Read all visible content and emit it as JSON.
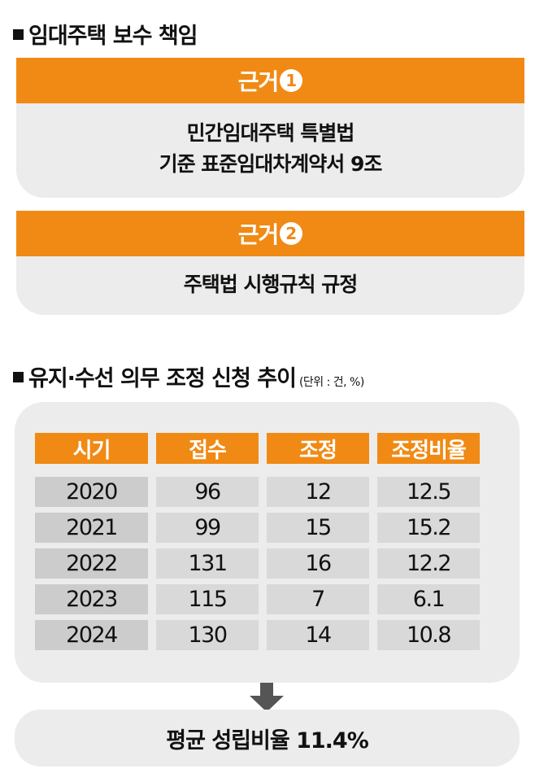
{
  "section1": {
    "title": "임대주택 보수 책임"
  },
  "basis": [
    {
      "label": "근거",
      "number": "1",
      "lines": [
        "민간임대주택 특별법",
        "기준 표준임대차계약서 9조"
      ]
    },
    {
      "label": "근거",
      "number": "2",
      "lines": [
        "주택법 시행규칙 규정"
      ]
    }
  ],
  "section2": {
    "title": "유지·수선 의무 조정 신청 추이",
    "unit": "(단위 : 건, %)"
  },
  "table": {
    "headers": [
      "시기",
      "접수",
      "조정",
      "조정비율"
    ],
    "rows": [
      [
        "2020",
        "96",
        "12",
        "12.5"
      ],
      [
        "2021",
        "99",
        "15",
        "15.2"
      ],
      [
        "2022",
        "131",
        "16",
        "12.2"
      ],
      [
        "2023",
        "115",
        "7",
        "6.1"
      ],
      [
        "2024",
        "130",
        "14",
        "10.8"
      ]
    ]
  },
  "result": {
    "text": "평균 성립비율 11.4%"
  },
  "colors": {
    "accent": "#f08a14",
    "panel": "#ececec",
    "cell": "#d9d9d9"
  }
}
